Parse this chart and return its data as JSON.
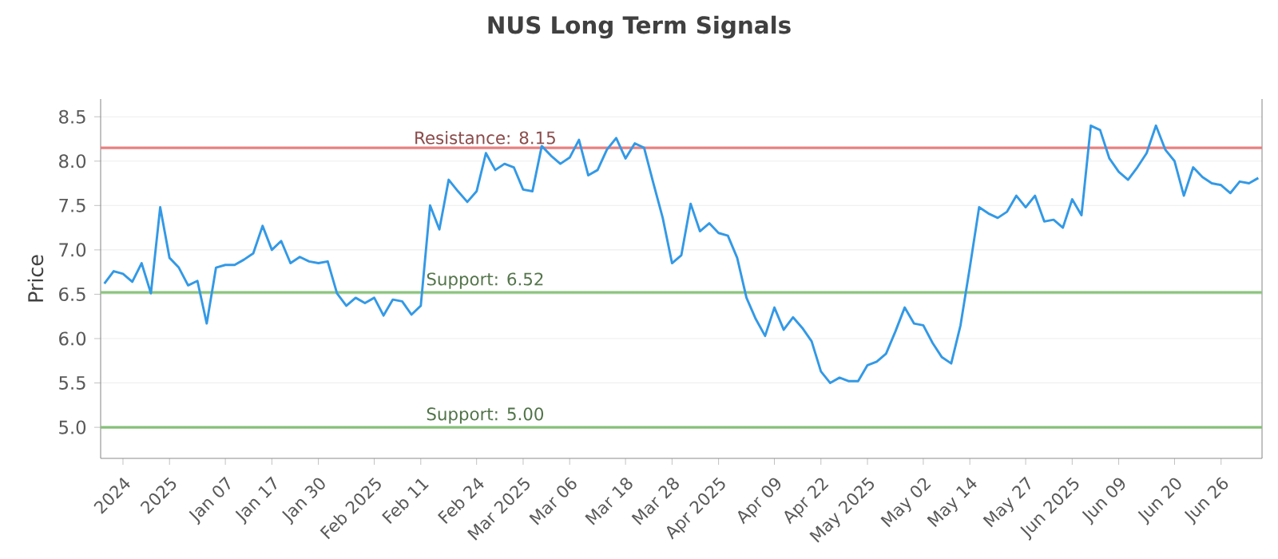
{
  "chart_data": {
    "type": "line",
    "title": "NUS Long Term Signals",
    "ylabel": "Price",
    "categories": [
      null,
      null,
      "2024",
      null,
      null,
      null,
      null,
      "2025",
      null,
      null,
      null,
      null,
      null,
      "Jan 07",
      null,
      null,
      null,
      null,
      "Jan 17",
      null,
      null,
      null,
      null,
      "Jan 30",
      null,
      null,
      null,
      null,
      null,
      "Feb 2025",
      null,
      null,
      null,
      null,
      "Feb 11",
      null,
      null,
      null,
      null,
      null,
      "Feb 24",
      null,
      null,
      null,
      null,
      "Mar 2025",
      null,
      null,
      null,
      null,
      "Mar 06",
      null,
      null,
      null,
      null,
      null,
      "Mar 18",
      null,
      null,
      null,
      null,
      "Mar 28",
      null,
      null,
      null,
      null,
      "Apr 2025",
      null,
      null,
      null,
      null,
      null,
      "Apr 09",
      null,
      null,
      null,
      null,
      "Apr 22",
      null,
      null,
      null,
      null,
      "May 2025",
      null,
      null,
      null,
      null,
      null,
      "May 02",
      null,
      null,
      null,
      null,
      "May 14",
      null,
      null,
      null,
      null,
      null,
      "May 27",
      null,
      null,
      null,
      null,
      "Jun 2025",
      null,
      null,
      null,
      null,
      "Jun 09",
      null,
      null,
      null,
      null,
      null,
      "Jun 20",
      null,
      null,
      null,
      null,
      "Jun 26",
      null,
      null,
      null,
      null
    ],
    "series": [
      {
        "color": "#3399e6",
        "values": [
          6.62,
          6.76,
          6.73,
          6.64,
          6.85,
          6.51,
          7.48,
          6.91,
          6.8,
          6.6,
          6.65,
          6.17,
          6.8,
          6.83,
          6.83,
          6.89,
          6.96,
          7.27,
          7.0,
          7.1,
          6.85,
          6.92,
          6.87,
          6.85,
          6.87,
          6.51,
          6.37,
          6.46,
          6.4,
          6.46,
          6.26,
          6.44,
          6.42,
          6.27,
          6.37,
          7.5,
          7.23,
          7.79,
          7.66,
          7.54,
          7.66,
          8.09,
          7.9,
          7.97,
          7.93,
          7.68,
          7.66,
          8.17,
          8.06,
          7.97,
          8.04,
          8.24,
          7.84,
          7.9,
          8.13,
          8.26,
          8.03,
          8.2,
          8.15,
          7.75,
          7.36,
          6.85,
          6.94,
          7.52,
          7.21,
          7.3,
          7.19,
          7.16,
          6.91,
          6.46,
          6.22,
          6.03,
          6.35,
          6.1,
          6.24,
          6.12,
          5.97,
          5.63,
          5.5,
          5.56,
          5.52,
          5.52,
          5.7,
          5.74,
          5.83,
          6.08,
          6.35,
          6.17,
          6.15,
          5.95,
          5.79,
          5.72,
          6.15,
          6.8,
          7.48,
          7.41,
          7.36,
          7.43,
          7.61,
          7.48,
          7.61,
          7.32,
          7.34,
          7.25,
          7.57,
          7.39,
          8.4,
          8.35,
          8.03,
          7.88,
          7.79,
          7.93,
          8.09,
          8.4,
          8.13,
          8.0,
          7.61,
          7.93,
          7.82,
          7.75,
          7.73,
          7.64,
          7.77,
          7.75,
          7.81
        ]
      }
    ],
    "ylim": [
      4.65,
      8.7
    ],
    "yticks": [
      {
        "value": 5.0,
        "label": "5.0"
      },
      {
        "value": 5.5,
        "label": "5.5"
      },
      {
        "value": 6.0,
        "label": "6.0"
      },
      {
        "value": 6.5,
        "label": "6.5"
      },
      {
        "value": 7.0,
        "label": "7.0"
      },
      {
        "value": 7.5,
        "label": "7.5"
      },
      {
        "value": 8.0,
        "label": "8.0"
      },
      {
        "value": 8.5,
        "label": "8.5"
      }
    ],
    "grid": "y",
    "marker": "none",
    "line_style": "solid",
    "ref_lines": [
      {
        "axis": "y",
        "value": 8.15,
        "label": "Resistance: 8.15",
        "color": "#e88080"
      },
      {
        "axis": "y",
        "value": 6.52,
        "label": "Support: 6.52",
        "color": "#8cc47e"
      },
      {
        "axis": "y",
        "value": 5.0,
        "label": "Support: 5.00",
        "color": "#86c078"
      }
    ]
  }
}
